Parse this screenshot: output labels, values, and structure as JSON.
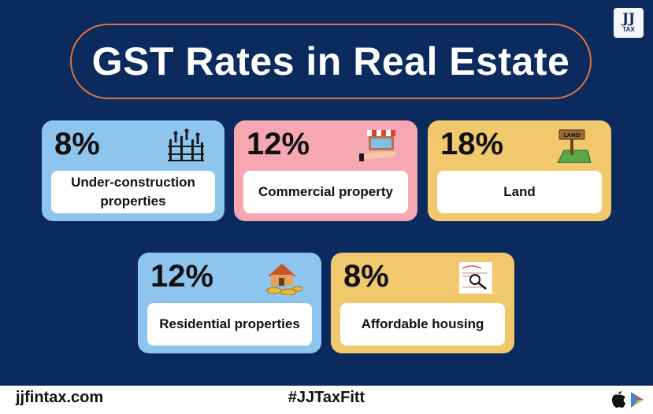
{
  "title": "GST Rates in Real Estate",
  "logo": {
    "line1": "JJ",
    "line2": "TAX"
  },
  "cards": [
    {
      "percent": "8%",
      "label": "Under-construction properties",
      "icon": "construction-workers-icon",
      "color": "#8ec5ef"
    },
    {
      "percent": "12%",
      "label": "Commercial property",
      "icon": "storefront-icon",
      "color": "#f7a7b2"
    },
    {
      "percent": "18%",
      "label": "Land",
      "icon": "land-sign-icon",
      "color": "#f1c86c"
    },
    {
      "percent": "12%",
      "label": "Residential properties",
      "icon": "house-coins-icon",
      "color": "#8ec5ef"
    },
    {
      "percent": "8%",
      "label": "Affordable housing",
      "icon": "magnifier-paper-icon",
      "color": "#f1c86c"
    }
  ],
  "footer": {
    "site": "jjfintax.com",
    "hashtag": "#JJTaxFitt",
    "store_icons": [
      "apple-icon",
      "google-play-icon"
    ]
  }
}
